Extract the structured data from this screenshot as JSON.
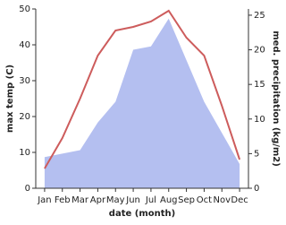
{
  "chart_data": {
    "type": "line-area",
    "categories": [
      "Jan",
      "Feb",
      "Mar",
      "Apr",
      "May",
      "Jun",
      "Jul",
      "Aug",
      "Sep",
      "Oct",
      "Nov",
      "Dec"
    ],
    "xlabel": "date (month)",
    "ylabel": "max temp (C)",
    "y2label": "med. precipitation (kg/m2)",
    "ylim": [
      0,
      50
    ],
    "yticks": [
      0,
      10,
      20,
      30,
      40,
      50
    ],
    "y2lim": [
      0,
      25.9
    ],
    "y2ticks": [
      0,
      5,
      10,
      15,
      20,
      25
    ],
    "series": [
      {
        "name": "max temp",
        "color": "#cd5c5c",
        "kind": "line",
        "values": [
          5.5,
          14,
          25,
          37,
          44,
          45,
          46.5,
          49.5,
          42,
          37,
          23,
          8
        ]
      },
      {
        "name": "med. precipitation",
        "color": "#b4bff0",
        "kind": "area",
        "axis": "y2",
        "values": [
          4.5,
          5,
          5.5,
          9.5,
          12.5,
          20,
          20.5,
          24.5,
          18.5,
          12.5,
          8,
          3.5
        ]
      }
    ]
  }
}
